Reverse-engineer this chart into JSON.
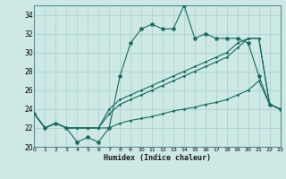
{
  "xlabel": "Humidex (Indice chaleur)",
  "bg_color": "#cde8e5",
  "grid_color": "#a8d5cf",
  "line_color": "#1a6b5a",
  "xlim": [
    0,
    23
  ],
  "ylim": [
    20,
    35
  ],
  "yticks": [
    20,
    22,
    24,
    26,
    28,
    30,
    32,
    34
  ],
  "xticks": [
    0,
    1,
    2,
    3,
    4,
    5,
    6,
    7,
    8,
    9,
    10,
    11,
    12,
    13,
    14,
    15,
    16,
    17,
    18,
    19,
    20,
    21,
    22,
    23
  ],
  "line1_x": [
    0,
    1,
    2,
    3,
    4,
    5,
    6,
    7,
    8,
    9,
    10,
    11,
    12,
    13,
    14,
    15,
    16,
    17,
    18,
    19,
    20,
    21,
    22,
    23
  ],
  "line1_y": [
    23.5,
    22.0,
    22.5,
    22.0,
    20.5,
    21.0,
    20.5,
    22.0,
    27.5,
    31.0,
    32.5,
    33.0,
    32.5,
    32.5,
    35.0,
    31.5,
    32.0,
    31.5,
    31.5,
    31.5,
    31.0,
    27.5,
    24.5,
    24.0
  ],
  "line2_x": [
    0,
    1,
    2,
    3,
    4,
    5,
    6,
    7,
    8,
    9,
    10,
    11,
    12,
    13,
    14,
    15,
    16,
    17,
    18,
    19,
    20,
    21,
    22,
    23
  ],
  "line2_y": [
    23.5,
    22.0,
    22.5,
    22.0,
    22.0,
    22.0,
    22.0,
    24.0,
    25.0,
    25.5,
    26.0,
    26.5,
    27.0,
    27.5,
    28.0,
    28.5,
    29.0,
    29.5,
    30.0,
    31.0,
    31.5,
    31.5,
    24.5,
    24.0
  ],
  "line3_x": [
    0,
    1,
    2,
    3,
    4,
    5,
    6,
    7,
    8,
    9,
    10,
    11,
    12,
    13,
    14,
    15,
    16,
    17,
    18,
    19,
    20,
    21,
    22,
    23
  ],
  "line3_y": [
    23.5,
    22.0,
    22.5,
    22.0,
    22.0,
    22.0,
    22.0,
    23.5,
    24.5,
    25.0,
    25.5,
    26.0,
    26.5,
    27.0,
    27.5,
    28.0,
    28.5,
    29.0,
    29.5,
    30.5,
    31.5,
    31.5,
    24.5,
    24.0
  ],
  "line4_x": [
    0,
    1,
    2,
    3,
    4,
    5,
    6,
    7,
    8,
    9,
    10,
    11,
    12,
    13,
    14,
    15,
    16,
    17,
    18,
    19,
    20,
    21,
    22,
    23
  ],
  "line4_y": [
    23.5,
    22.0,
    22.5,
    22.0,
    22.0,
    22.0,
    22.0,
    22.0,
    22.5,
    22.8,
    23.0,
    23.2,
    23.5,
    23.8,
    24.0,
    24.2,
    24.5,
    24.7,
    25.0,
    25.5,
    26.0,
    27.0,
    24.5,
    24.0
  ]
}
